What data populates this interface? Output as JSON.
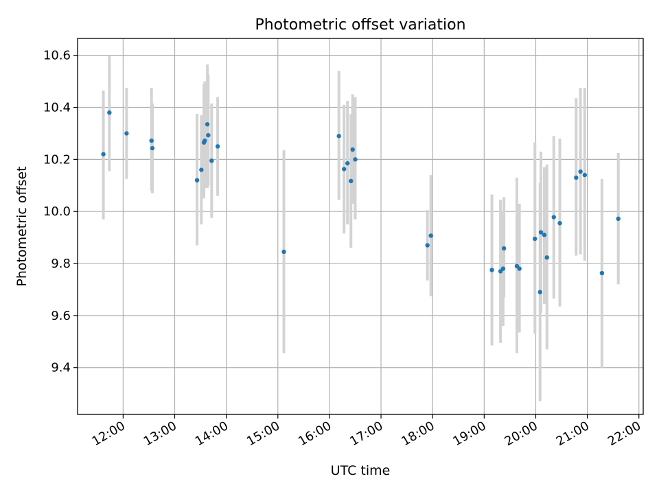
{
  "chart_data": {
    "type": "scatter",
    "title": "Photometric offset variation",
    "xlabel": "UTC time",
    "ylabel": "Photometric offset",
    "x_ticks": [
      "12:00",
      "13:00",
      "14:00",
      "15:00",
      "16:00",
      "17:00",
      "18:00",
      "19:00",
      "20:00",
      "21:00",
      "22:00"
    ],
    "y_ticks": [
      9.4,
      9.6,
      9.8,
      10.0,
      10.2,
      10.4,
      10.6
    ],
    "xlim": [
      "11:07",
      "22:05"
    ],
    "ylim": [
      9.22,
      10.665
    ],
    "grid": true,
    "colors": {
      "points": "#1f77b4",
      "error_bars": "#d3d3d3"
    },
    "points": [
      {
        "x": "11:37",
        "y": 10.22,
        "low": 9.97,
        "high": 10.465
      },
      {
        "x": "11:44",
        "y": 10.38,
        "low": 10.155,
        "high": 10.6
      },
      {
        "x": "12:04",
        "y": 10.3,
        "low": 10.125,
        "high": 10.475
      },
      {
        "x": "12:33",
        "y": 10.272,
        "low": 10.08,
        "high": 10.475
      },
      {
        "x": "12:34",
        "y": 10.243,
        "low": 10.07,
        "high": 10.415
      },
      {
        "x": "13:26",
        "y": 10.12,
        "low": 9.87,
        "high": 10.375
      },
      {
        "x": "13:31",
        "y": 10.16,
        "low": 9.95,
        "high": 10.37
      },
      {
        "x": "13:34",
        "y": 10.265,
        "low": 10.05,
        "high": 10.49
      },
      {
        "x": "13:35",
        "y": 10.272,
        "low": 10.09,
        "high": 10.5
      },
      {
        "x": "13:38",
        "y": 10.335,
        "low": 10.09,
        "high": 10.565
      },
      {
        "x": "13:39",
        "y": 10.293,
        "low": 10.1,
        "high": 10.525
      },
      {
        "x": "13:43",
        "y": 10.195,
        "low": 9.975,
        "high": 10.415
      },
      {
        "x": "13:50",
        "y": 10.25,
        "low": 10.06,
        "high": 10.44
      },
      {
        "x": "15:07",
        "y": 9.845,
        "low": 9.455,
        "high": 10.235
      },
      {
        "x": "16:11",
        "y": 10.29,
        "low": 10.045,
        "high": 10.54
      },
      {
        "x": "16:17",
        "y": 10.163,
        "low": 9.915,
        "high": 10.41
      },
      {
        "x": "16:21",
        "y": 10.185,
        "low": 9.95,
        "high": 10.425
      },
      {
        "x": "16:25",
        "y": 10.117,
        "low": 9.86,
        "high": 10.375
      },
      {
        "x": "16:27",
        "y": 10.238,
        "low": 10.03,
        "high": 10.45
      },
      {
        "x": "16:30",
        "y": 10.2,
        "low": 9.97,
        "high": 10.44
      },
      {
        "x": "17:54",
        "y": 9.87,
        "low": 9.735,
        "high": 10.005
      },
      {
        "x": "17:58",
        "y": 9.907,
        "low": 9.675,
        "high": 10.14
      },
      {
        "x": "19:09",
        "y": 9.775,
        "low": 9.485,
        "high": 10.065
      },
      {
        "x": "19:19",
        "y": 9.77,
        "low": 9.495,
        "high": 10.045
      },
      {
        "x": "19:22",
        "y": 9.78,
        "low": 9.56,
        "high": 10.0
      },
      {
        "x": "19:23",
        "y": 9.858,
        "low": 9.67,
        "high": 10.055
      },
      {
        "x": "19:38",
        "y": 9.79,
        "low": 9.455,
        "high": 10.13
      },
      {
        "x": "19:41",
        "y": 9.78,
        "low": 9.535,
        "high": 10.03
      },
      {
        "x": "19:59",
        "y": 9.895,
        "low": 9.53,
        "high": 10.265
      },
      {
        "x": "20:05",
        "y": 9.69,
        "low": 9.27,
        "high": 10.11
      },
      {
        "x": "20:06",
        "y": 9.92,
        "low": 9.61,
        "high": 10.23
      },
      {
        "x": "20:10",
        "y": 9.91,
        "low": 9.645,
        "high": 10.17
      },
      {
        "x": "20:13",
        "y": 9.823,
        "low": 9.47,
        "high": 10.18
      },
      {
        "x": "20:21",
        "y": 9.978,
        "low": 9.665,
        "high": 10.29
      },
      {
        "x": "20:28",
        "y": 9.955,
        "low": 9.635,
        "high": 10.28
      },
      {
        "x": "20:47",
        "y": 10.13,
        "low": 9.83,
        "high": 10.435
      },
      {
        "x": "20:52",
        "y": 10.153,
        "low": 9.835,
        "high": 10.475
      },
      {
        "x": "20:57",
        "y": 10.14,
        "low": 9.81,
        "high": 10.475
      },
      {
        "x": "21:17",
        "y": 9.763,
        "low": 9.4,
        "high": 10.125
      },
      {
        "x": "21:36",
        "y": 9.972,
        "low": 9.72,
        "high": 10.225
      }
    ]
  }
}
